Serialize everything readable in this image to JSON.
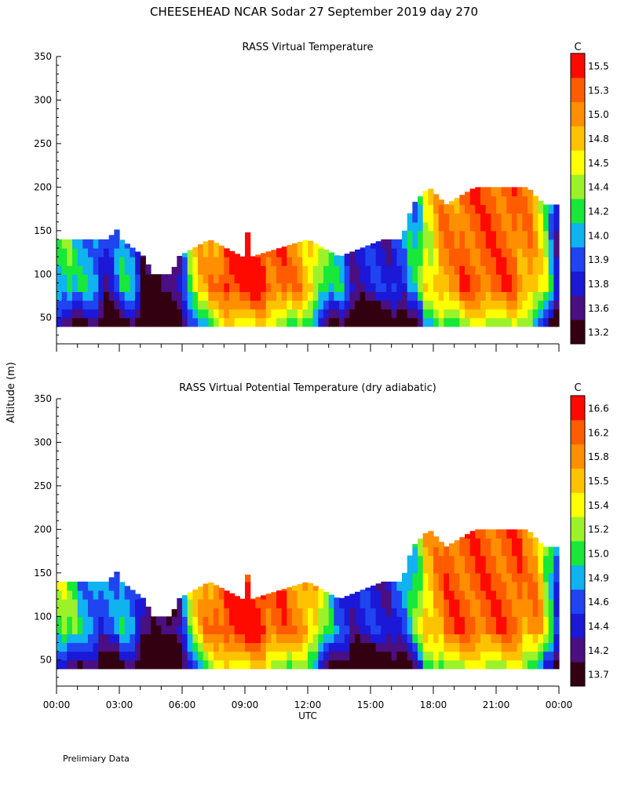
{
  "figure": {
    "title": "CHEESEHEAD  NCAR Sodar  27 September 2019  day 270",
    "ylabel": "Altitude (m)",
    "xlabel": "UTC",
    "footer": "Prelimiary Data"
  },
  "chart_data": [
    {
      "type": "heatmap",
      "title": "RASS Virtual Temperature",
      "xlabel": "UTC",
      "ylabel": "Altitude (m)",
      "xlim": [
        0,
        24
      ],
      "ylim": [
        20,
        350
      ],
      "x_ticks": [
        "00:00",
        "03:00",
        "06:00",
        "09:00",
        "12:00",
        "15:00",
        "18:00",
        "21:00",
        "00:00"
      ],
      "y_ticks": [
        50,
        100,
        150,
        200,
        250,
        300,
        350
      ],
      "colorbar_unit": "C",
      "colorbar_levels": [
        13.2,
        13.6,
        13.8,
        13.9,
        14.0,
        14.2,
        14.4,
        14.5,
        14.8,
        15.0,
        15.3,
        15.5
      ],
      "colorbar_colors": [
        "#330011",
        "#4a0f80",
        "#1b18d8",
        "#1f44f0",
        "#10b2f0",
        "#17e83a",
        "#9cf22a",
        "#ffff00",
        "#ffc200",
        "#ff8e00",
        "#ff5c00",
        "#ff0a00"
      ],
      "data_bottom_m": 40,
      "top_envelope_m": [
        {
          "t": 0.0,
          "h": 140
        },
        {
          "t": 2.6,
          "h": 140
        },
        {
          "t": 2.7,
          "h": 160
        },
        {
          "t": 3.1,
          "h": 140
        },
        {
          "t": 4.2,
          "h": 120
        },
        {
          "t": 4.6,
          "h": 100
        },
        {
          "t": 5.5,
          "h": 100
        },
        {
          "t": 5.8,
          "h": 120
        },
        {
          "t": 7.3,
          "h": 140
        },
        {
          "t": 8.9,
          "h": 120
        },
        {
          "t": 9.05,
          "h": 160
        },
        {
          "t": 9.3,
          "h": 120
        },
        {
          "t": 12.0,
          "h": 140
        },
        {
          "t": 13.5,
          "h": 120
        },
        {
          "t": 15.6,
          "h": 140
        },
        {
          "t": 16.5,
          "h": 140
        },
        {
          "t": 17.0,
          "h": 180
        },
        {
          "t": 17.8,
          "h": 200
        },
        {
          "t": 18.6,
          "h": 180
        },
        {
          "t": 20.0,
          "h": 200
        },
        {
          "t": 21.5,
          "h": 200
        },
        {
          "t": 22.5,
          "h": 200
        },
        {
          "t": 23.3,
          "h": 180
        },
        {
          "t": 23.9,
          "h": 180
        }
      ],
      "time_profile_C": [
        {
          "t": 0.0,
          "v": 14.4
        },
        {
          "t": 1.0,
          "v": 14.1
        },
        {
          "t": 2.0,
          "v": 14.0
        },
        {
          "t": 2.4,
          "v": 13.8
        },
        {
          "t": 3.0,
          "v": 14.0
        },
        {
          "t": 3.6,
          "v": 14.1
        },
        {
          "t": 4.3,
          "v": 13.7
        },
        {
          "t": 5.0,
          "v": 13.4
        },
        {
          "t": 5.8,
          "v": 13.7
        },
        {
          "t": 6.3,
          "v": 14.4
        },
        {
          "t": 7.0,
          "v": 14.9
        },
        {
          "t": 8.0,
          "v": 15.5
        },
        {
          "t": 10.0,
          "v": 15.5
        },
        {
          "t": 11.0,
          "v": 15.3
        },
        {
          "t": 12.0,
          "v": 14.9
        },
        {
          "t": 13.0,
          "v": 14.2
        },
        {
          "t": 14.0,
          "v": 13.9
        },
        {
          "t": 15.0,
          "v": 13.8
        },
        {
          "t": 16.0,
          "v": 13.9
        },
        {
          "t": 16.8,
          "v": 14.0
        },
        {
          "t": 17.5,
          "v": 14.4
        },
        {
          "t": 18.5,
          "v": 15.2
        },
        {
          "t": 20.0,
          "v": 15.4
        },
        {
          "t": 21.0,
          "v": 15.3
        },
        {
          "t": 22.0,
          "v": 15.3
        },
        {
          "t": 23.0,
          "v": 14.9
        },
        {
          "t": 23.9,
          "v": 13.8
        }
      ]
    },
    {
      "type": "heatmap",
      "title": "RASS Virtual Potential Temperature (dry adiabatic)",
      "xlabel": "UTC",
      "ylabel": "Altitude (m)",
      "xlim": [
        0,
        24
      ],
      "ylim": [
        20,
        350
      ],
      "x_ticks": [
        "00:00",
        "03:00",
        "06:00",
        "09:00",
        "12:00",
        "15:00",
        "18:00",
        "21:00",
        "00:00"
      ],
      "y_ticks": [
        50,
        100,
        150,
        200,
        250,
        300,
        350
      ],
      "colorbar_unit": "C",
      "colorbar_levels": [
        13.7,
        14.2,
        14.4,
        14.6,
        14.9,
        15.0,
        15.2,
        15.4,
        15.5,
        15.8,
        16.2,
        16.6
      ],
      "colorbar_colors": [
        "#330011",
        "#4a0f80",
        "#1b18d8",
        "#1f44f0",
        "#10b2f0",
        "#17e83a",
        "#9cf22a",
        "#ffff00",
        "#ffc200",
        "#ff8e00",
        "#ff5c00",
        "#ff0a00"
      ],
      "data_bottom_m": 40,
      "top_envelope_m": [
        {
          "t": 0.0,
          "h": 140
        },
        {
          "t": 2.6,
          "h": 140
        },
        {
          "t": 2.7,
          "h": 160
        },
        {
          "t": 3.1,
          "h": 140
        },
        {
          "t": 4.2,
          "h": 120
        },
        {
          "t": 4.6,
          "h": 100
        },
        {
          "t": 5.5,
          "h": 100
        },
        {
          "t": 5.8,
          "h": 120
        },
        {
          "t": 7.3,
          "h": 140
        },
        {
          "t": 8.9,
          "h": 120
        },
        {
          "t": 9.05,
          "h": 160
        },
        {
          "t": 9.3,
          "h": 120
        },
        {
          "t": 12.0,
          "h": 140
        },
        {
          "t": 13.5,
          "h": 120
        },
        {
          "t": 15.6,
          "h": 140
        },
        {
          "t": 16.5,
          "h": 140
        },
        {
          "t": 17.0,
          "h": 180
        },
        {
          "t": 17.8,
          "h": 200
        },
        {
          "t": 18.6,
          "h": 180
        },
        {
          "t": 20.0,
          "h": 200
        },
        {
          "t": 21.5,
          "h": 200
        },
        {
          "t": 22.5,
          "h": 200
        },
        {
          "t": 23.3,
          "h": 180
        },
        {
          "t": 23.9,
          "h": 180
        }
      ],
      "time_profile_C": [
        {
          "t": 0.0,
          "v": 15.4
        },
        {
          "t": 1.0,
          "v": 15.0
        },
        {
          "t": 2.0,
          "v": 14.9
        },
        {
          "t": 2.4,
          "v": 14.6
        },
        {
          "t": 3.0,
          "v": 14.9
        },
        {
          "t": 3.6,
          "v": 15.0
        },
        {
          "t": 4.3,
          "v": 14.4
        },
        {
          "t": 5.0,
          "v": 13.9
        },
        {
          "t": 5.8,
          "v": 14.4
        },
        {
          "t": 6.3,
          "v": 15.2
        },
        {
          "t": 7.0,
          "v": 15.8
        },
        {
          "t": 8.0,
          "v": 16.6
        },
        {
          "t": 10.0,
          "v": 16.6
        },
        {
          "t": 11.0,
          "v": 16.2
        },
        {
          "t": 12.0,
          "v": 15.8
        },
        {
          "t": 13.0,
          "v": 15.0
        },
        {
          "t": 14.0,
          "v": 14.6
        },
        {
          "t": 15.0,
          "v": 14.5
        },
        {
          "t": 16.0,
          "v": 14.6
        },
        {
          "t": 16.8,
          "v": 14.9
        },
        {
          "t": 17.5,
          "v": 15.4
        },
        {
          "t": 18.5,
          "v": 16.2
        },
        {
          "t": 20.0,
          "v": 16.5
        },
        {
          "t": 21.0,
          "v": 16.3
        },
        {
          "t": 22.0,
          "v": 16.3
        },
        {
          "t": 23.0,
          "v": 15.8
        },
        {
          "t": 23.9,
          "v": 14.8
        }
      ]
    }
  ]
}
